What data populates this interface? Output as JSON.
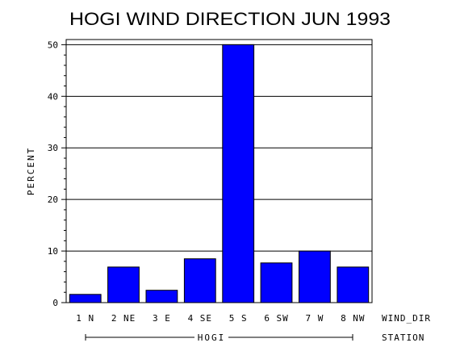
{
  "chart_data": {
    "type": "bar",
    "title": "HOGI WIND DIRECTION JUN 1993",
    "ylabel": "PERCENT",
    "xlabel": "WIND_DIR",
    "group_axis_label": "STATION",
    "group_label": "HOGI",
    "categories": [
      "1 N",
      "2 NE",
      "3 E",
      "4 SE",
      "5 S",
      "6 SW",
      "7 W",
      "8 NW"
    ],
    "values": [
      1.6,
      6.9,
      2.4,
      8.5,
      50.0,
      7.7,
      10.0,
      6.9
    ],
    "ylim": [
      0,
      51
    ],
    "yticks": [
      "0",
      "10",
      "20",
      "30",
      "40",
      "50"
    ],
    "grid": true,
    "bar_color": "#0000ff"
  }
}
